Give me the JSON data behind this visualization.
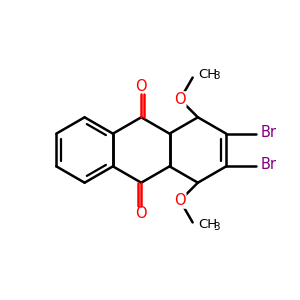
{
  "bg_color": "#ffffff",
  "bond_color": "#000000",
  "oxygen_color": "#ff0000",
  "bromine_color": "#800080",
  "line_width": 1.8,
  "figsize": [
    3.0,
    3.0
  ],
  "dpi": 100,
  "xlim": [
    0,
    10
  ],
  "ylim": [
    0,
    10
  ]
}
